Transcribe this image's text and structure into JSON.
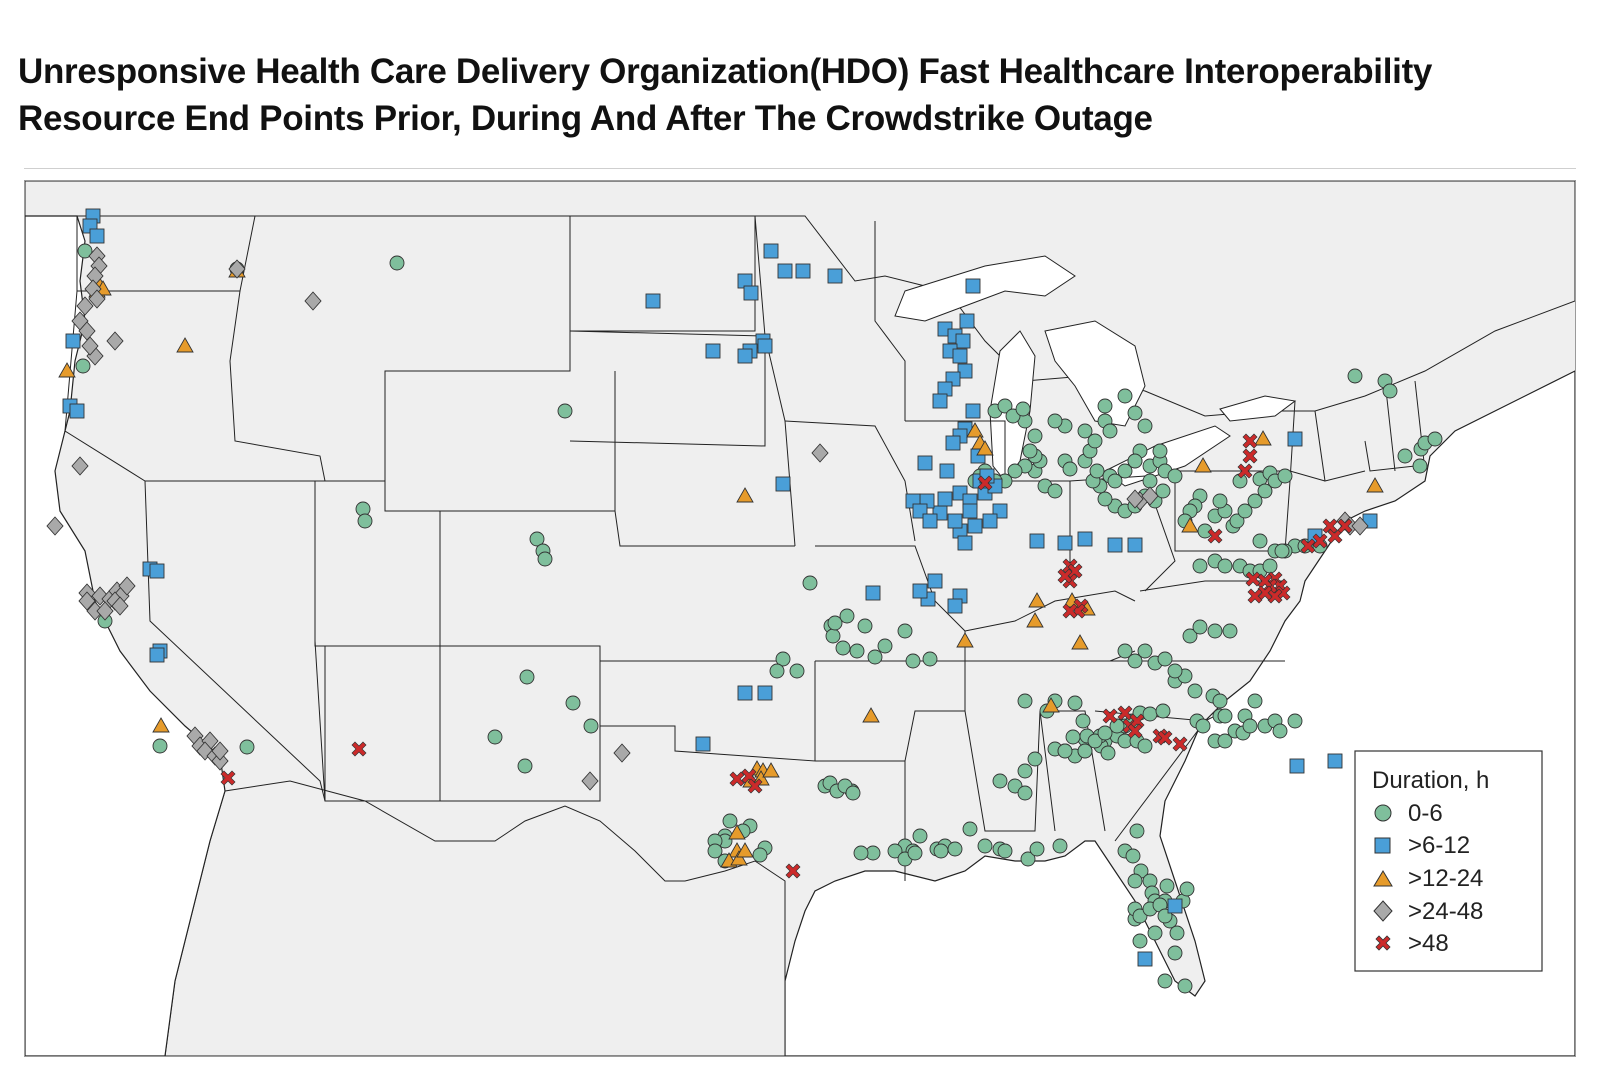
{
  "title": {
    "line1": "Unresponsive Health Care Delivery Organization(HDO) Fast Healthcare Interoperability",
    "line2": "Resource End Points Prior, During And After The Crowdstrike Outage"
  },
  "legend": {
    "title": "Duration, h",
    "entries": [
      {
        "key": "c0",
        "label": "0-6",
        "shape": "circle",
        "color": "#7fbf9c"
      },
      {
        "key": "c1",
        "label": ">6-12",
        "shape": "square",
        "color": "#4a9fd8"
      },
      {
        "key": "c2",
        "label": ">12-24",
        "shape": "triangle",
        "color": "#e69b2b"
      },
      {
        "key": "c3",
        "label": ">24-48",
        "shape": "diamond",
        "color": "#a9a9a9"
      },
      {
        "key": "c4",
        "label": ">48",
        "shape": "cross",
        "color": "#cc2a2a"
      }
    ]
  }
}
